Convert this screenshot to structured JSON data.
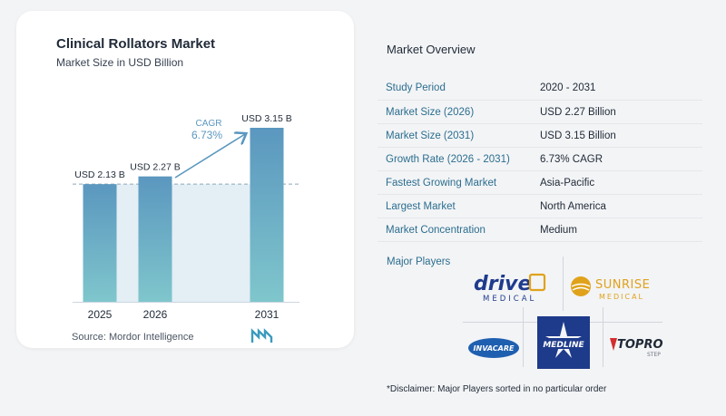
{
  "chart": {
    "title": "Clinical Rollators Market",
    "subtitle": "Market Size in USD Billion",
    "source": "Source:  Mordor Intelligence",
    "cagr_label": "CAGR",
    "cagr_value": "6.73%"
  },
  "chart_data": {
    "type": "bar",
    "title": "Clinical Rollators Market",
    "subtitle": "Market Size in USD Billion",
    "categories": [
      "2025",
      "2026",
      "2031"
    ],
    "values": [
      2.13,
      2.27,
      3.15
    ],
    "data_labels": [
      "USD 2.13 B",
      "USD 2.27 B",
      "USD 3.15 B"
    ],
    "ylim": [
      0,
      3.15
    ],
    "grid": false,
    "annotations": [
      {
        "text": "CAGR 6.73%",
        "from": "2026",
        "to": "2031"
      }
    ],
    "colors": {
      "bar_top": "#5b97bf",
      "bar_bottom": "#7fc6cc",
      "reference_line": "#8fa7b6",
      "shade": "#e3eef5"
    }
  },
  "overview": {
    "title": "Market Overview",
    "rows": [
      {
        "label": "Study Period",
        "value": "2020 - 2031"
      },
      {
        "label": "Market Size (2026)",
        "value": "USD 2.27 Billion"
      },
      {
        "label": "Market Size (2031)",
        "value": "USD 3.15 Billion"
      },
      {
        "label": "Growth Rate (2026 - 2031)",
        "value": "6.73% CAGR"
      },
      {
        "label": "Fastest Growing Market",
        "value": "Asia-Pacific"
      },
      {
        "label": "Largest Market",
        "value": "North America"
      },
      {
        "label": "Market Concentration",
        "value": "Medium"
      }
    ]
  },
  "players": {
    "title": "Major Players",
    "logos": {
      "drive_word": "drive",
      "drive_sub": "MEDICAL",
      "sunrise_word": "SUNRISE",
      "sunrise_sub": "MEDICAL",
      "invacare": "INVACARE",
      "medline": "MEDLINE",
      "topro": "TOPRO",
      "topro_sub": "STEP"
    },
    "disclaimer": "*Disclaimer: Major Players sorted in no particular order"
  },
  "colors": {
    "accent": "#2b6e8f",
    "navy": "#1f3b8c",
    "medline": "#1e3a8a",
    "sunrise": "#e0a21b",
    "topro_red": "#d32f2f"
  }
}
